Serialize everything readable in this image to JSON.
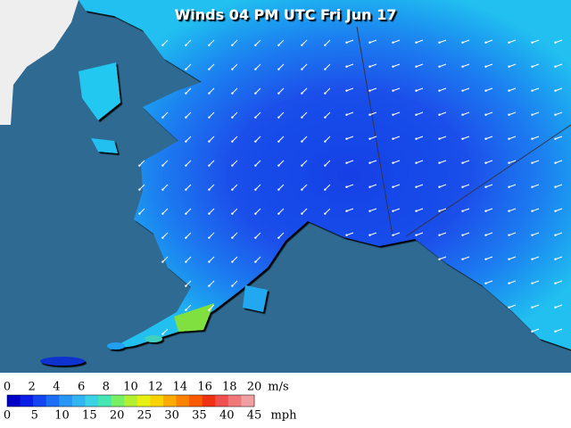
{
  "title": "Winds 04 PM UTC Fri Jun 17",
  "legend": {
    "ms_labels": [
      0,
      2,
      4,
      6,
      8,
      10,
      12,
      14,
      16,
      18,
      20
    ],
    "ms_unit": "m/s",
    "mph_labels": [
      0,
      5,
      10,
      15,
      20,
      25,
      30,
      35,
      40,
      45
    ],
    "mph_unit": "mph",
    "colors": [
      "#0000c8",
      "#0a1ee6",
      "#1446f0",
      "#1e6ef5",
      "#2896f5",
      "#32b4f0",
      "#3cd2e6",
      "#46e6b4",
      "#78f064",
      "#b4f032",
      "#e6f014",
      "#fad200",
      "#faaa00",
      "#fa8200",
      "#fa5a00",
      "#f03214",
      "#f05050",
      "#f07878",
      "#f0a0a0"
    ]
  }
}
